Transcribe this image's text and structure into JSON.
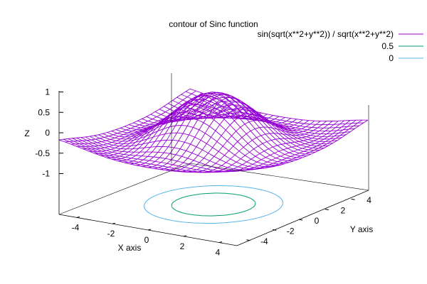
{
  "chart_data": {
    "type": "surface",
    "title": "contour of Sinc function",
    "xlabel": "X axis",
    "ylabel": "Y axis",
    "zlabel": "Z",
    "xlim": [
      -5,
      5
    ],
    "ylim": [
      -5,
      5
    ],
    "zlim": [
      -1.5,
      1
    ],
    "xticks": [
      "-4",
      "-2",
      "0",
      "2",
      "4"
    ],
    "yticks": [
      "-4",
      "-2",
      "0",
      "2",
      "4"
    ],
    "zticks": [
      "1",
      "0.5",
      "0",
      "-0.5",
      "-1"
    ],
    "function": "sin(sqrt(x**2+y**2)) / sqrt(x**2+y**2)",
    "grid_samples": 31,
    "contour_levels": [
      0.5,
      0
    ],
    "legend_position": "top-right",
    "series": [
      {
        "name": "sin(sqrt(x**2+y**2)) / sqrt(x**2+y**2)",
        "kind": "surface",
        "color": "#9400d3"
      },
      {
        "name": "0.5",
        "kind": "contour",
        "level": 0.5,
        "color": "#009e73"
      },
      {
        "name": "0",
        "kind": "contour",
        "level": 0,
        "color": "#56b4e9"
      }
    ]
  }
}
